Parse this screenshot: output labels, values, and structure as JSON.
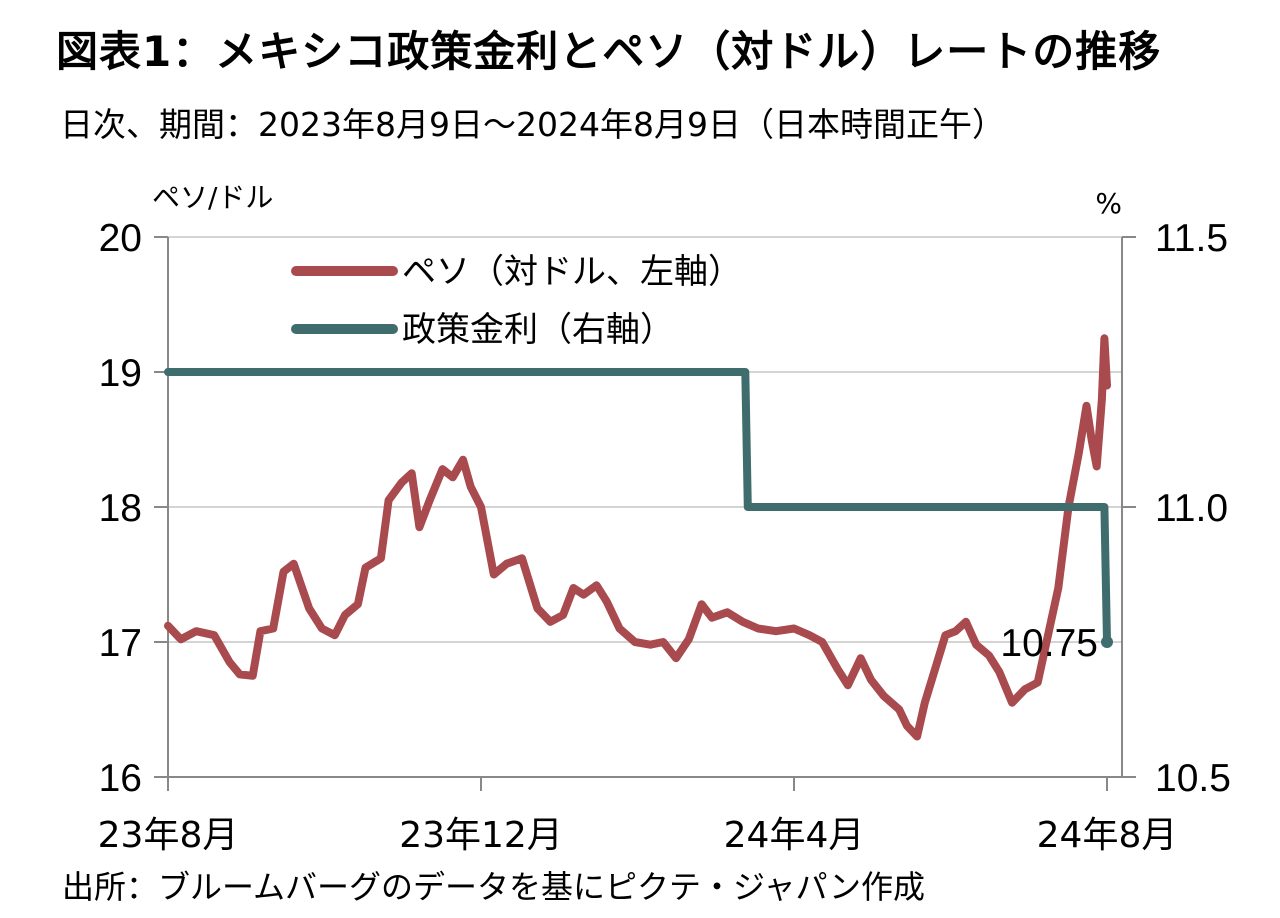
{
  "title": "図表1：メキシコ政策金利とペソ（対ドル）レートの推移",
  "subtitle": "日次、期間：2023年8月9日～2024年8月9日（日本時間正午）",
  "source": "出所：ブルームバーグのデータを基にピクテ・ジャパン作成",
  "chart_data": {
    "type": "line",
    "left_axis": {
      "unit_label": "ペソ/ドル",
      "range": [
        16,
        20
      ],
      "ticks": [
        "16",
        "17",
        "18",
        "19",
        "20"
      ]
    },
    "right_axis": {
      "unit_label": "%",
      "range": [
        10.5,
        11.5
      ],
      "ticks": [
        "10.5",
        "11.0",
        "11.5"
      ]
    },
    "x_axis": {
      "range": [
        "2023-08-09",
        "2024-08-09"
      ],
      "ticks": [
        "23年8月",
        "23年12月",
        "24年4月",
        "24年8月"
      ]
    },
    "grid": true,
    "legend_placement": "top-left",
    "end_annotation": "10.75",
    "series": [
      {
        "name": "ペソ（対ドル、左軸）",
        "axis": "left",
        "color": "#a84a4e",
        "points": [
          [
            "2023-08-09",
            17.12
          ],
          [
            "2023-08-14",
            17.02
          ],
          [
            "2023-08-20",
            17.08
          ],
          [
            "2023-08-27",
            17.05
          ],
          [
            "2023-09-02",
            16.85
          ],
          [
            "2023-09-06",
            16.76
          ],
          [
            "2023-09-11",
            16.75
          ],
          [
            "2023-09-14",
            17.08
          ],
          [
            "2023-09-19",
            17.1
          ],
          [
            "2023-09-23",
            17.52
          ],
          [
            "2023-09-27",
            17.58
          ],
          [
            "2023-10-03",
            17.25
          ],
          [
            "2023-10-08",
            17.1
          ],
          [
            "2023-10-13",
            17.05
          ],
          [
            "2023-10-17",
            17.2
          ],
          [
            "2023-10-22",
            17.28
          ],
          [
            "2023-10-25",
            17.55
          ],
          [
            "2023-10-31",
            17.62
          ],
          [
            "2023-11-03",
            18.05
          ],
          [
            "2023-11-08",
            18.18
          ],
          [
            "2023-11-12",
            18.25
          ],
          [
            "2023-11-15",
            17.85
          ],
          [
            "2023-11-19",
            18.05
          ],
          [
            "2023-11-24",
            18.28
          ],
          [
            "2023-11-28",
            18.22
          ],
          [
            "2023-12-02",
            18.35
          ],
          [
            "2023-12-05",
            18.15
          ],
          [
            "2023-12-09",
            18.0
          ],
          [
            "2023-12-14",
            17.5
          ],
          [
            "2023-12-19",
            17.58
          ],
          [
            "2023-12-25",
            17.62
          ],
          [
            "2023-12-31",
            17.25
          ],
          [
            "2024-01-05",
            17.15
          ],
          [
            "2024-01-10",
            17.2
          ],
          [
            "2024-01-14",
            17.4
          ],
          [
            "2024-01-18",
            17.35
          ],
          [
            "2024-01-23",
            17.42
          ],
          [
            "2024-01-27",
            17.3
          ],
          [
            "2024-02-01",
            17.1
          ],
          [
            "2024-02-07",
            17.0
          ],
          [
            "2024-02-13",
            16.98
          ],
          [
            "2024-02-18",
            17.0
          ],
          [
            "2024-02-23",
            16.88
          ],
          [
            "2024-02-28",
            17.02
          ],
          [
            "2024-03-04",
            17.28
          ],
          [
            "2024-03-08",
            17.18
          ],
          [
            "2024-03-14",
            17.22
          ],
          [
            "2024-03-20",
            17.15
          ],
          [
            "2024-03-26",
            17.1
          ],
          [
            "2024-04-02",
            17.08
          ],
          [
            "2024-04-09",
            17.1
          ],
          [
            "2024-04-15",
            17.05
          ],
          [
            "2024-04-20",
            17.0
          ],
          [
            "2024-04-26",
            16.8
          ],
          [
            "2024-04-30",
            16.68
          ],
          [
            "2024-05-05",
            16.88
          ],
          [
            "2024-05-09",
            16.72
          ],
          [
            "2024-05-14",
            16.6
          ],
          [
            "2024-05-20",
            16.5
          ],
          [
            "2024-05-23",
            16.38
          ],
          [
            "2024-05-27",
            16.3
          ],
          [
            "2024-05-30",
            16.55
          ],
          [
            "2024-06-03",
            16.8
          ],
          [
            "2024-06-07",
            17.05
          ],
          [
            "2024-06-11",
            17.08
          ],
          [
            "2024-06-15",
            17.15
          ],
          [
            "2024-06-19",
            16.98
          ],
          [
            "2024-06-24",
            16.9
          ],
          [
            "2024-06-28",
            16.78
          ],
          [
            "2024-07-03",
            16.55
          ],
          [
            "2024-07-08",
            16.65
          ],
          [
            "2024-07-13",
            16.7
          ],
          [
            "2024-07-17",
            17.05
          ],
          [
            "2024-07-21",
            17.4
          ],
          [
            "2024-07-25",
            18.0
          ],
          [
            "2024-07-29",
            18.4
          ],
          [
            "2024-08-01",
            18.75
          ],
          [
            "2024-08-03",
            18.5
          ],
          [
            "2024-08-05",
            18.3
          ],
          [
            "2024-08-06",
            18.55
          ],
          [
            "2024-08-07",
            18.8
          ],
          [
            "2024-08-08",
            19.25
          ],
          [
            "2024-08-09",
            18.9
          ]
        ]
      },
      {
        "name": "政策金利（右軸）",
        "axis": "right",
        "color": "#3f6d6e",
        "points": [
          [
            "2023-08-09",
            11.25
          ],
          [
            "2024-03-21",
            11.25
          ],
          [
            "2024-03-22",
            11.0
          ],
          [
            "2024-08-08",
            11.0
          ],
          [
            "2024-08-09",
            10.75
          ]
        ]
      }
    ]
  }
}
